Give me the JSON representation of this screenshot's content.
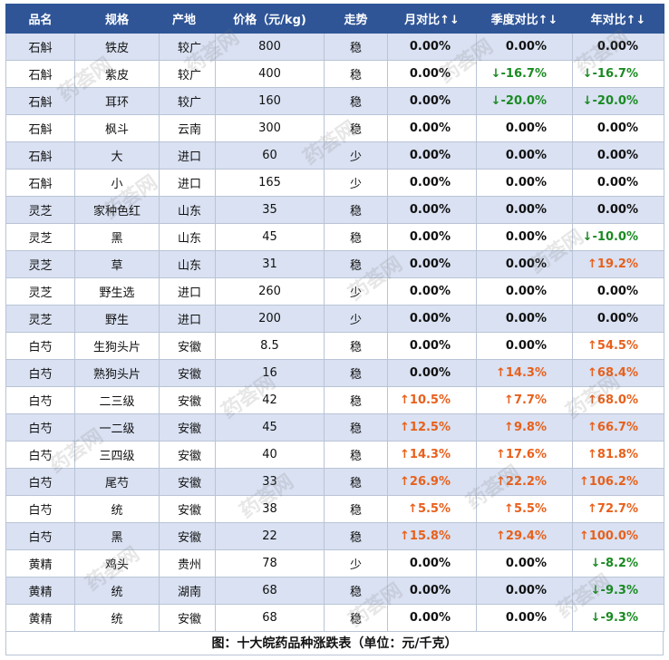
{
  "headers": [
    "品名",
    "规格",
    "产地",
    "价格（元/kg)",
    "走势",
    "月对比↑↓",
    "季度对比↑↓",
    "年对比↑↓"
  ],
  "rows": [
    [
      "石斛",
      "铁皮",
      "较广",
      "800",
      "稳",
      "0.00%",
      "0.00%",
      "0.00%"
    ],
    [
      "石斛",
      "紫皮",
      "较广",
      "400",
      "稳",
      "0.00%",
      "↓-16.7%",
      "↓-16.7%"
    ],
    [
      "石斛",
      "耳环",
      "较广",
      "160",
      "稳",
      "0.00%",
      "↓-20.0%",
      "↓-20.0%"
    ],
    [
      "石斛",
      "枫斗",
      "云南",
      "300",
      "稳",
      "0.00%",
      "0.00%",
      "0.00%"
    ],
    [
      "石斛",
      "大",
      "进口",
      "60",
      "少",
      "0.00%",
      "0.00%",
      "0.00%"
    ],
    [
      "石斛",
      "小",
      "进口",
      "165",
      "少",
      "0.00%",
      "0.00%",
      "0.00%"
    ],
    [
      "灵芝",
      "家种色红",
      "山东",
      "35",
      "稳",
      "0.00%",
      "0.00%",
      "0.00%"
    ],
    [
      "灵芝",
      "黑",
      "山东",
      "45",
      "稳",
      "0.00%",
      "0.00%",
      "↓-10.0%"
    ],
    [
      "灵芝",
      "草",
      "山东",
      "31",
      "稳",
      "0.00%",
      "0.00%",
      "↑19.2%"
    ],
    [
      "灵芝",
      "野生选",
      "进口",
      "260",
      "少",
      "0.00%",
      "0.00%",
      "0.00%"
    ],
    [
      "灵芝",
      "野生",
      "进口",
      "200",
      "少",
      "0.00%",
      "0.00%",
      "0.00%"
    ],
    [
      "白芍",
      "生狗头片",
      "安徽",
      "8.5",
      "稳",
      "0.00%",
      "0.00%",
      "↑54.5%"
    ],
    [
      "白芍",
      "熟狗头片",
      "安徽",
      "16",
      "稳",
      "0.00%",
      "↑14.3%",
      "↑68.4%"
    ],
    [
      "白芍",
      "二三级",
      "安徽",
      "42",
      "稳",
      "↑10.5%",
      "↑7.7%",
      "↑68.0%"
    ],
    [
      "白芍",
      "一二级",
      "安徽",
      "45",
      "稳",
      "↑12.5%",
      "↑9.8%",
      "↑66.7%"
    ],
    [
      "白芍",
      "三四级",
      "安徽",
      "40",
      "稳",
      "↑14.3%",
      "↑17.6%",
      "↑81.8%"
    ],
    [
      "白芍",
      "尾芍",
      "安徽",
      "33",
      "稳",
      "↑26.9%",
      "↑22.2%",
      "↑106.2%"
    ],
    [
      "白芍",
      "统",
      "安徽",
      "38",
      "稳",
      "↑5.5%",
      "↑5.5%",
      "↑72.7%"
    ],
    [
      "白芍",
      "黑",
      "安徽",
      "22",
      "稳",
      "↑15.8%",
      "↑29.4%",
      "↑100.0%"
    ],
    [
      "黄精",
      "鸡头",
      "贵州",
      "78",
      "少",
      "0.00%",
      "0.00%",
      "↓-8.2%"
    ],
    [
      "黄精",
      "统",
      "湖南",
      "68",
      "稳",
      "0.00%",
      "0.00%",
      "↓-9.3%"
    ],
    [
      "黄精",
      "统",
      "安徽",
      "68",
      "稳",
      "0.00%",
      "0.00%",
      "↓-9.3%"
    ]
  ],
  "caption": "图：十大皖药品种涨跌表（单位：元/千克）",
  "watermark": "药荟网",
  "colors": {
    "header_bg": "#2f5597",
    "band": "#d9e1f2",
    "up": "#e8601c",
    "down": "#1a8a22"
  }
}
